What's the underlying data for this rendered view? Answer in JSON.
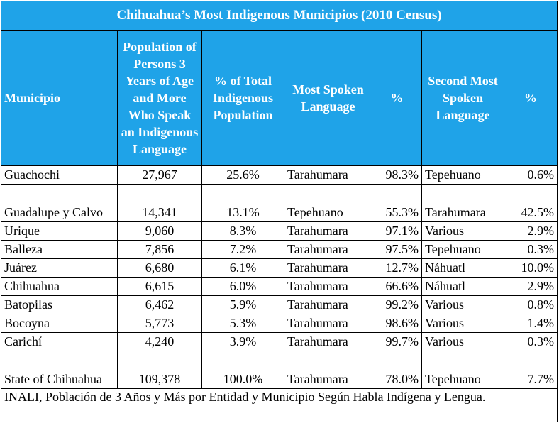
{
  "title": "Chihuahua’s Most Indigenous Municipios (2010 Census)",
  "headers": {
    "municipio": "Municipio",
    "population": "Population of Persons 3 Years of Age and More Who Speak an Indigenous Language",
    "pct_total": "% of Total Indigenous Population",
    "most_spoken": "Most Spoken Language",
    "pct1": "%",
    "second_most": "Second Most Spoken Language",
    "pct2": "%"
  },
  "rows": [
    {
      "municipio": "Guachochi",
      "population": "27,967",
      "pct_total": "25.6%",
      "lang1": "Tarahumara",
      "pct1": "98.3%",
      "lang2": "Tepehuano",
      "pct2": "0.6%"
    },
    {
      "municipio": "Guadalupe y Calvo",
      "population": "14,341",
      "pct_total": "13.1%",
      "lang1": "Tepehuano",
      "pct1": "55.3%",
      "lang2": "Tarahumara",
      "pct2": "42.5%"
    },
    {
      "municipio": "Urique",
      "population": "9,060",
      "pct_total": "8.3%",
      "lang1": "Tarahumara",
      "pct1": "97.1%",
      "lang2": "Various",
      "pct2": "2.9%"
    },
    {
      "municipio": "Balleza",
      "population": "7,856",
      "pct_total": "7.2%",
      "lang1": "Tarahumara",
      "pct1": "97.5%",
      "lang2": "Tepehuano",
      "pct2": "0.3%"
    },
    {
      "municipio": "Juárez",
      "population": "6,680",
      "pct_total": "6.1%",
      "lang1": "Tarahumara",
      "pct1": "12.7%",
      "lang2": "Náhuatl",
      "pct2": "10.0%"
    },
    {
      "municipio": "Chihuahua",
      "population": "6,615",
      "pct_total": "6.0%",
      "lang1": "Tarahumara",
      "pct1": "66.6%",
      "lang2": "Náhuatl",
      "pct2": "2.9%"
    },
    {
      "municipio": "Batopilas",
      "population": "6,462",
      "pct_total": "5.9%",
      "lang1": "Tarahumara",
      "pct1": "99.2%",
      "lang2": "Various",
      "pct2": "0.8%"
    },
    {
      "municipio": "Bocoyna",
      "population": "5,773",
      "pct_total": "5.3%",
      "lang1": "Tarahumara",
      "pct1": "98.6%",
      "lang2": "Various",
      "pct2": "1.4%"
    },
    {
      "municipio": "Carichí",
      "population": "4,240",
      "pct_total": "3.9%",
      "lang1": "Tarahumara",
      "pct1": "99.7%",
      "lang2": "Various",
      "pct2": "0.3%"
    },
    {
      "municipio": "State of Chihuahua",
      "population": "109,378",
      "pct_total": "100.0%",
      "lang1": "Tarahumara",
      "pct1": "78.0%",
      "lang2": "Tepehuano",
      "pct2": "7.7%"
    }
  ],
  "source": "INALI, Población de 3 Años y Más por Entidad y Municipio Según Habla Indígena y Lengua.",
  "colors": {
    "header_bg": "#1fa3e8",
    "header_text": "#ffffff"
  }
}
